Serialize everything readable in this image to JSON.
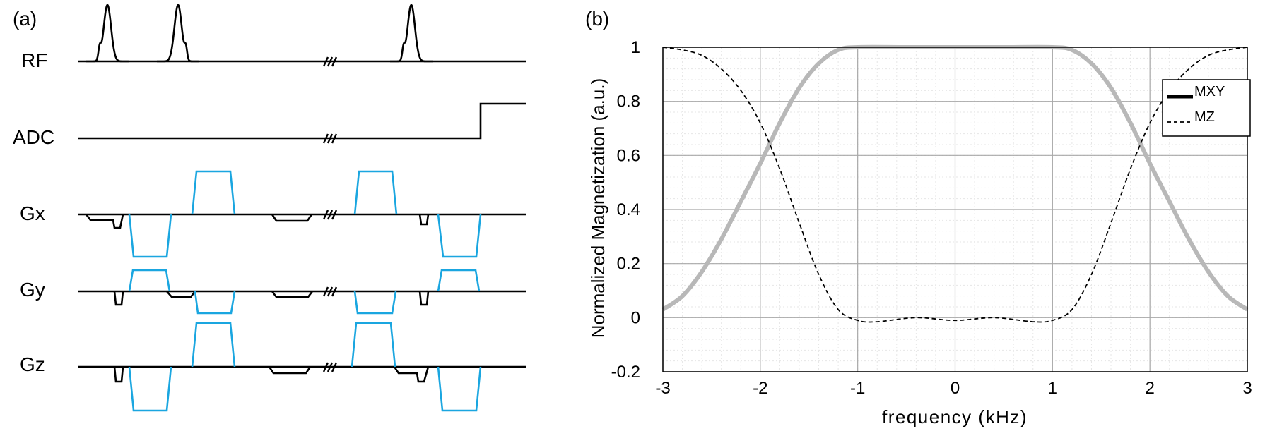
{
  "panel_a": {
    "label": "(a)",
    "rows": [
      {
        "name": "RF"
      },
      {
        "name": "ADC"
      },
      {
        "name": "Gx"
      },
      {
        "name": "Gy"
      },
      {
        "name": "Gz"
      }
    ],
    "colors": {
      "line": "#000000",
      "blue": "#1aa6e0"
    }
  },
  "panel_b": {
    "label": "(b)"
  },
  "chart_data": {
    "type": "line",
    "xlabel": "frequency  (kHz)",
    "ylabel": "Normalized Magnetization (a.u.)",
    "xlim": [
      -3,
      3
    ],
    "ylim": [
      -0.2,
      1
    ],
    "xticks": [
      -3,
      -2,
      -1,
      0,
      1,
      2,
      3
    ],
    "xtick_labels": [
      "-3",
      "-2",
      "-1",
      "0",
      "1",
      "2",
      "3"
    ],
    "yticks": [
      -0.2,
      0,
      0.2,
      0.4,
      0.6,
      0.8,
      1
    ],
    "ytick_labels": [
      "-0.2",
      "0",
      "0.2",
      "0.4",
      "0.6",
      "0.8",
      "1"
    ],
    "grid": true,
    "minor_grid": true,
    "legend_position": "top-right",
    "series": [
      {
        "name": "MXY",
        "style": "solid",
        "color": "#b8b8b8",
        "x": [
          -3,
          -2.8,
          -2.6,
          -2.4,
          -2.2,
          -2.0,
          -1.8,
          -1.6,
          -1.4,
          -1.2,
          -1.0,
          -0.5,
          0,
          0.5,
          1.0,
          1.2,
          1.4,
          1.6,
          1.8,
          2.0,
          2.2,
          2.4,
          2.6,
          2.8,
          3
        ],
        "y": [
          0.03,
          0.08,
          0.17,
          0.29,
          0.43,
          0.57,
          0.72,
          0.85,
          0.94,
          0.99,
          1.0,
          1.0,
          1.0,
          1.0,
          1.0,
          0.99,
          0.94,
          0.85,
          0.72,
          0.57,
          0.43,
          0.29,
          0.17,
          0.08,
          0.03
        ]
      },
      {
        "name": "MZ",
        "style": "dashed",
        "color": "#000000",
        "x": [
          -3,
          -2.8,
          -2.6,
          -2.4,
          -2.2,
          -2.0,
          -1.8,
          -1.6,
          -1.4,
          -1.2,
          -1.0,
          -0.8,
          -0.4,
          0,
          0.4,
          0.8,
          1.0,
          1.2,
          1.4,
          1.6,
          1.8,
          2.0,
          2.2,
          2.4,
          2.6,
          2.8,
          3
        ],
        "y": [
          1.0,
          0.99,
          0.97,
          0.92,
          0.84,
          0.72,
          0.55,
          0.35,
          0.16,
          0.03,
          -0.01,
          -0.015,
          0.0,
          -0.01,
          0.0,
          -0.015,
          -0.01,
          0.03,
          0.16,
          0.35,
          0.55,
          0.72,
          0.84,
          0.92,
          0.97,
          0.99,
          1.0
        ]
      }
    ]
  }
}
